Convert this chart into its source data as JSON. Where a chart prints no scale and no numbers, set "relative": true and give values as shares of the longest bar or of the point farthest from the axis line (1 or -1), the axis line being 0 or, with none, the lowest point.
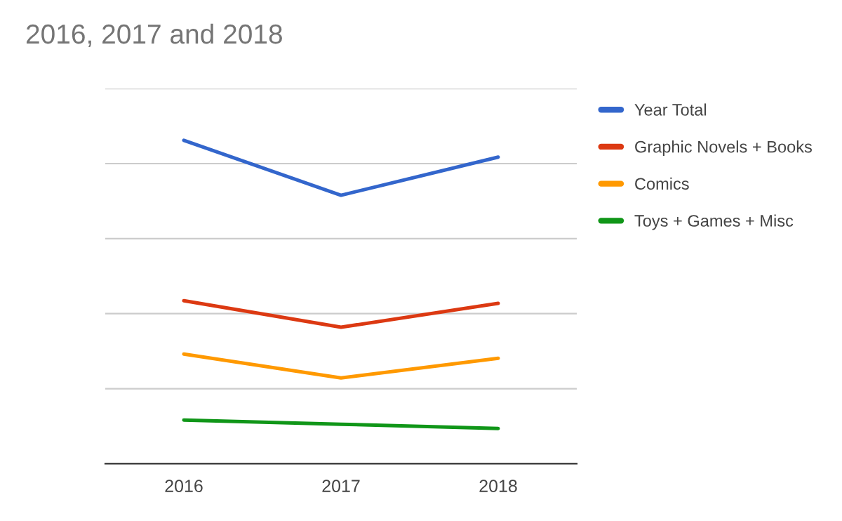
{
  "chart_data": {
    "type": "line",
    "title": "2016, 2017 and 2018",
    "categories": [
      "2016",
      "2017",
      "2018"
    ],
    "relative": true,
    "grid": "y",
    "legend": "right",
    "series": [
      {
        "name": "Year Total",
        "color": "#3366cc",
        "values": [
          1,
          0.83,
          0.948
        ]
      },
      {
        "name": "Graphic Novels + Books",
        "color": "#dc3912",
        "values": [
          0.504,
          0.422,
          0.496
        ]
      },
      {
        "name": "Comics",
        "color": "#ff9900",
        "values": [
          0.339,
          0.265,
          0.326
        ]
      },
      {
        "name": "Toys + Games + Misc",
        "color": "#109618",
        "values": [
          0.135,
          0.122,
          0.109
        ]
      }
    ]
  }
}
